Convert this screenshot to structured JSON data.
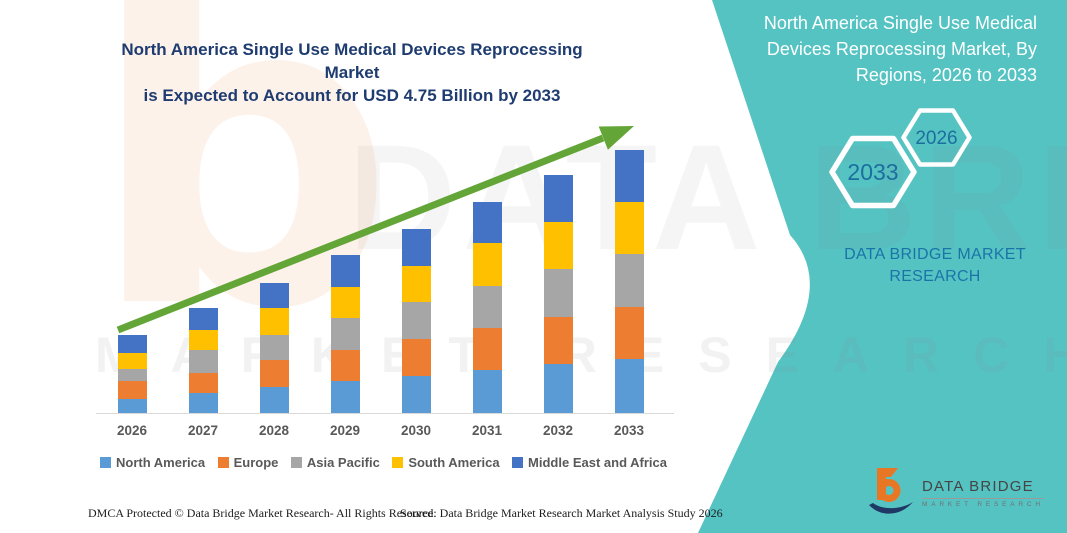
{
  "chart": {
    "title_lines": [
      "North America Single Use Medical Devices Reprocessing Market",
      "is Expected to Account for USD 4.75 Billion by 2033"
    ]
  },
  "chart_data": {
    "type": "bar",
    "stacked": true,
    "title": "North America Single Use Medical Devices Reprocessing Market is Expected to Account for USD 4.75 Billion by 2033",
    "unit": "USD Billion",
    "categories": [
      "2026",
      "2027",
      "2028",
      "2029",
      "2030",
      "2031",
      "2032",
      "2033"
    ],
    "series": [
      {
        "name": "North America",
        "color": "#5B9BD5",
        "values": [
          0.26,
          0.36,
          0.47,
          0.57,
          0.67,
          0.78,
          0.88,
          0.97
        ]
      },
      {
        "name": "Europe",
        "color": "#ED7D31",
        "values": [
          0.31,
          0.37,
          0.48,
          0.56,
          0.66,
          0.75,
          0.85,
          0.94
        ]
      },
      {
        "name": "Asia Pacific",
        "color": "#A6A6A6",
        "values": [
          0.22,
          0.41,
          0.46,
          0.58,
          0.67,
          0.77,
          0.87,
          0.96
        ]
      },
      {
        "name": "South America",
        "color": "#FFC000",
        "values": [
          0.3,
          0.36,
          0.48,
          0.57,
          0.66,
          0.76,
          0.85,
          0.94
        ]
      },
      {
        "name": "Middle East and Africa",
        "color": "#4472C4",
        "values": [
          0.31,
          0.4,
          0.46,
          0.57,
          0.66,
          0.75,
          0.85,
          0.94
        ]
      }
    ],
    "totals_by_year": [
      1.4,
      1.9,
      2.35,
      2.85,
      3.32,
      3.81,
      4.3,
      4.75
    ],
    "xlabel": "",
    "ylabel": "",
    "ylim": [
      0,
      5
    ],
    "grid": false,
    "legend_position": "bottom",
    "annotations": [
      "green upward trend arrow from 2026 bar to 2033 bar"
    ]
  },
  "teal_panel": {
    "title_lines": [
      "North America Single Use Medical",
      "Devices Reprocessing Market, By",
      "Regions, 2026 to 2033"
    ],
    "hexagons": [
      {
        "label": "2026"
      },
      {
        "label": "2033"
      }
    ],
    "brand_lines": [
      "DATA BRIDGE MARKET",
      "RESEARCH"
    ]
  },
  "watermark": {
    "letter": "b",
    "line1": "DATA BRIDGE",
    "line2": "MARKET RESEARCH"
  },
  "logo": {
    "name": "DATA BRIDGE",
    "tagline": "MARKET RESEARCH"
  },
  "footer": {
    "dmca": "DMCA Protected © Data Bridge Market Research-  All Rights Reserved.",
    "source": "Source: Data Bridge Market Research  Market Analysis Study 2026"
  },
  "colors": {
    "teal_background": "#56C3C3",
    "trend_arrow_green": "#63A537",
    "title_navy": "#1F3C70",
    "hexagon_label_blue": "#1C6E9E",
    "brand_blue": "#1B74A8",
    "axis_text_gray": "#595959"
  }
}
